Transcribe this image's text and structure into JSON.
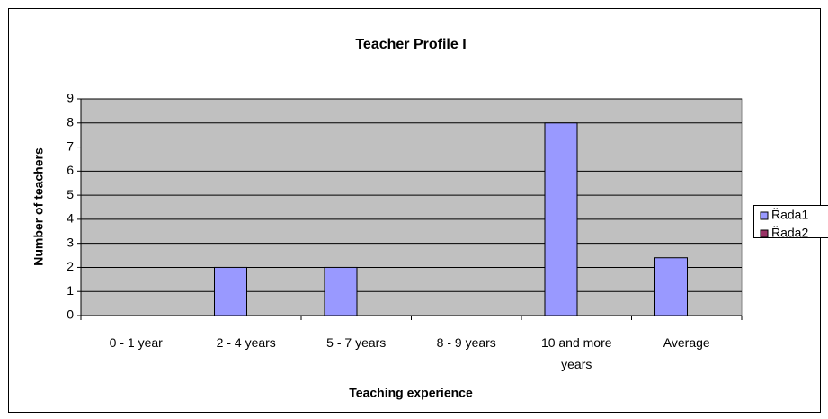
{
  "chart_data": {
    "type": "bar",
    "title": "Teacher Profile I",
    "x_label": "Teaching experience",
    "y_label": "Number of teachers",
    "categories": [
      "0 - 1 year",
      "2 - 4 years",
      "5 - 7 years",
      "8 - 9 years",
      "10 and more years",
      "Average"
    ],
    "series": [
      {
        "name": "Řada1",
        "color": "#9999ff",
        "values": [
          0,
          2,
          2,
          0,
          8,
          2.4
        ]
      },
      {
        "name": "Řada2",
        "color": "#993366",
        "values": [
          0,
          0,
          0,
          0,
          0,
          0
        ]
      }
    ],
    "ylim": [
      0,
      9
    ],
    "yticks": [
      0,
      1,
      2,
      3,
      4,
      5,
      6,
      7,
      8,
      9
    ],
    "grid": true,
    "legend": "right"
  }
}
